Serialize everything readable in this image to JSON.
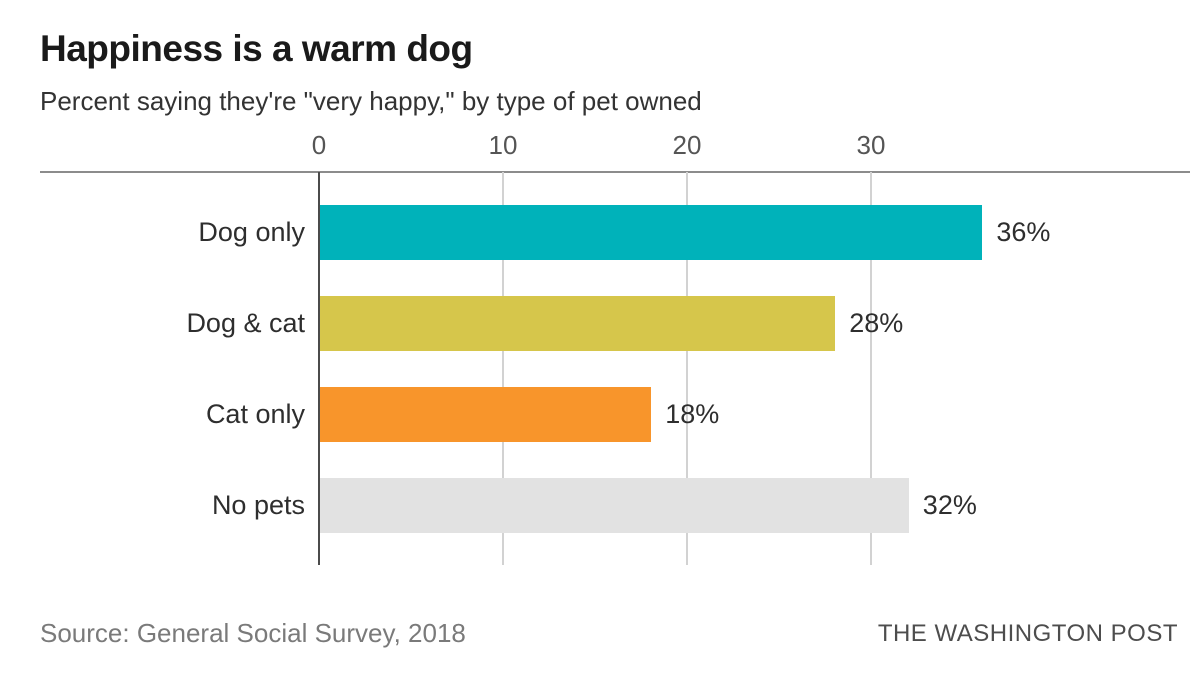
{
  "header": {
    "title": "Happiness is a warm dog",
    "subtitle": "Percent saying they're \"very happy,\" by type of pet owned"
  },
  "chart_data": {
    "type": "bar",
    "orientation": "horizontal",
    "title": "Happiness is a warm dog",
    "subtitle": "Percent saying they're \"very happy,\" by type of pet owned",
    "categories": [
      "Dog only",
      "Dog & cat",
      "Cat only",
      "No pets"
    ],
    "values": [
      36,
      28,
      18,
      32
    ],
    "value_labels": [
      "36%",
      "28%",
      "18%",
      "32%"
    ],
    "bar_colors": [
      "#00b2ba",
      "#d6c64b",
      "#f8952b",
      "#e2e2e2"
    ],
    "x_ticks": [
      0,
      10,
      20,
      30
    ],
    "xlim": [
      0,
      47
    ],
    "xlabel": "",
    "ylabel": "",
    "grid": true,
    "legend": false
  },
  "footer": {
    "source": "Source: General Social Survey, 2018",
    "brand": "THE WASHINGTON POST"
  },
  "style": {
    "zero_line_color": "#4b4b4b",
    "gridline_color": "#d2d2d2",
    "axis_rule_color": "#8c8c8c",
    "text_color": "#2e2e2e",
    "muted_text_color": "#7a7a7a"
  }
}
